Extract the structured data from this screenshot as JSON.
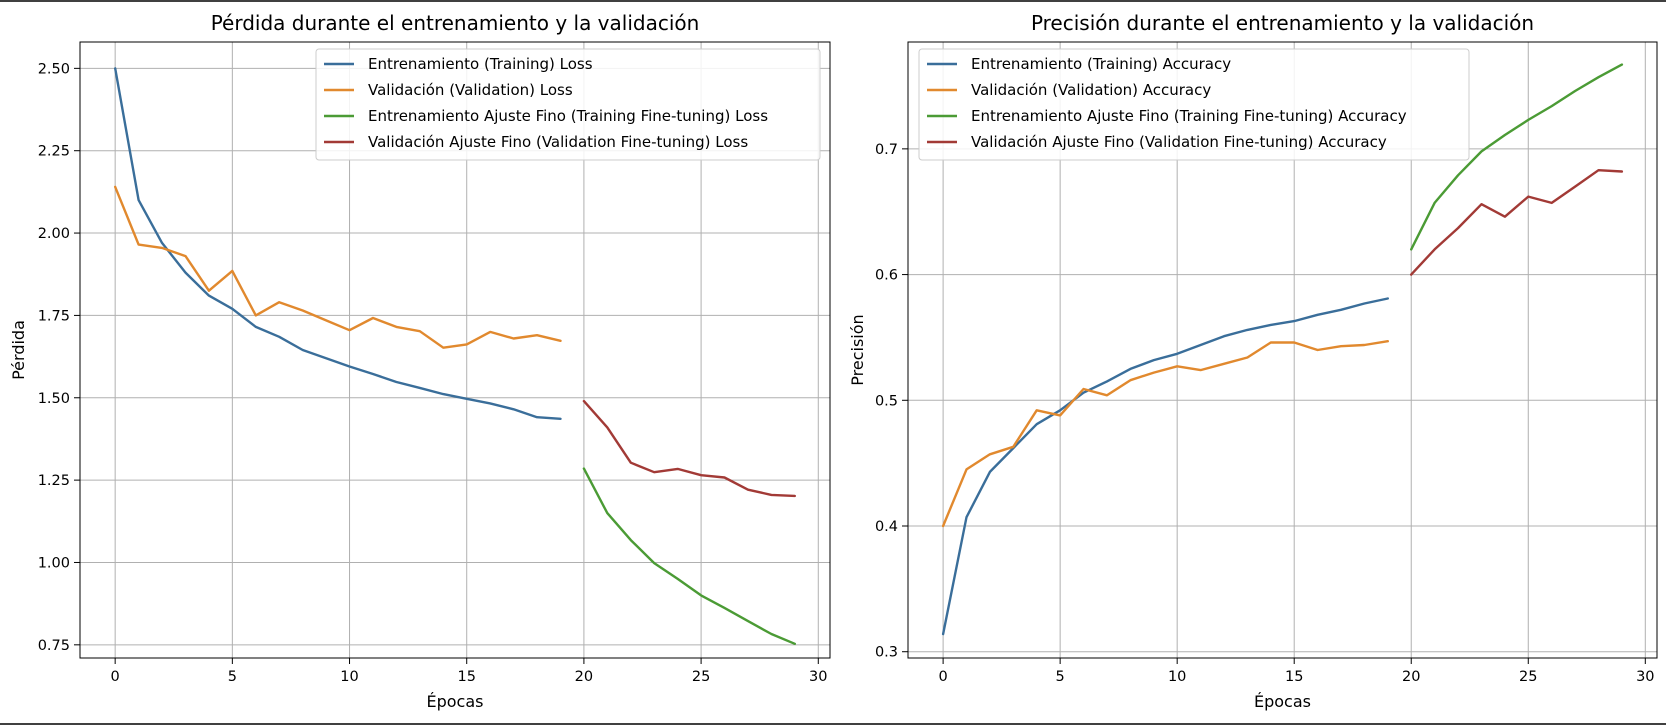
{
  "colors": {
    "training": "#3a6e9a",
    "validation": "#e1892e",
    "training_ft": "#4b9b35",
    "validation_ft": "#a23a36",
    "grid": "#b0b0b0"
  },
  "chart_data": [
    {
      "type": "line",
      "title": "Pérdida durante el entrenamiento y la validación",
      "xlabel": "Épocas",
      "ylabel": "Pérdida",
      "xlim": [
        -1.5,
        30.5
      ],
      "ylim": [
        0.71,
        2.58
      ],
      "xticks": [
        0,
        5,
        10,
        15,
        20,
        25,
        30
      ],
      "yticks": [
        0.75,
        1.0,
        1.25,
        1.5,
        1.75,
        2.0,
        2.25,
        2.5
      ],
      "ytick_labels": [
        "0.75",
        "1.00",
        "1.25",
        "1.50",
        "1.75",
        "2.00",
        "2.25",
        "2.50"
      ],
      "grid": true,
      "legend_position": "top-right",
      "series": [
        {
          "name": "Entrenamiento (Training) Loss",
          "color_key": "training",
          "x": [
            0,
            1,
            2,
            3,
            4,
            5,
            6,
            7,
            8,
            9,
            10,
            11,
            12,
            13,
            14,
            15,
            16,
            17,
            18,
            19
          ],
          "values": [
            2.5,
            2.1,
            1.97,
            1.88,
            1.81,
            1.77,
            1.715,
            1.685,
            1.645,
            1.62,
            1.595,
            1.572,
            1.548,
            1.53,
            1.511,
            1.497,
            1.483,
            1.465,
            1.441,
            1.436
          ]
        },
        {
          "name": "Validación (Validation) Loss",
          "color_key": "validation",
          "x": [
            0,
            1,
            2,
            3,
            4,
            5,
            6,
            7,
            8,
            9,
            10,
            11,
            12,
            13,
            14,
            15,
            16,
            17,
            18,
            19
          ],
          "values": [
            2.14,
            1.965,
            1.955,
            1.93,
            1.825,
            1.885,
            1.75,
            1.79,
            1.765,
            1.735,
            1.705,
            1.742,
            1.715,
            1.702,
            1.652,
            1.662,
            1.7,
            1.68,
            1.69,
            1.673
          ]
        },
        {
          "name": "Entrenamiento Ajuste Fino (Training Fine-tuning) Loss",
          "color_key": "training_ft",
          "x": [
            20,
            21,
            22,
            23,
            24,
            25,
            26,
            27,
            28,
            29
          ],
          "values": [
            1.285,
            1.15,
            1.068,
            0.998,
            0.95,
            0.9,
            0.862,
            0.822,
            0.783,
            0.753
          ]
        },
        {
          "name": "Validación Ajuste Fino (Validation Fine-tuning) Loss",
          "color_key": "validation_ft",
          "x": [
            20,
            21,
            22,
            23,
            24,
            25,
            26,
            27,
            28,
            29
          ],
          "values": [
            1.49,
            1.41,
            1.303,
            1.274,
            1.284,
            1.265,
            1.258,
            1.221,
            1.205,
            1.202
          ]
        }
      ]
    },
    {
      "type": "line",
      "title": "Precisión durante el entrenamiento y la validación",
      "xlabel": "Épocas",
      "ylabel": "Precisión",
      "xlim": [
        -1.5,
        30.5
      ],
      "ylim": [
        0.295,
        0.785
      ],
      "xticks": [
        0,
        5,
        10,
        15,
        20,
        25,
        30
      ],
      "yticks": [
        0.3,
        0.4,
        0.5,
        0.6,
        0.7
      ],
      "ytick_labels": [
        "0.3",
        "0.4",
        "0.5",
        "0.6",
        "0.7"
      ],
      "grid": true,
      "legend_position": "top-left",
      "series": [
        {
          "name": "Entrenamiento (Training) Accuracy",
          "color_key": "training",
          "x": [
            0,
            1,
            2,
            3,
            4,
            5,
            6,
            7,
            8,
            9,
            10,
            11,
            12,
            13,
            14,
            15,
            16,
            17,
            18,
            19
          ],
          "values": [
            0.314,
            0.407,
            0.443,
            0.462,
            0.481,
            0.492,
            0.506,
            0.515,
            0.525,
            0.532,
            0.537,
            0.544,
            0.551,
            0.556,
            0.56,
            0.563,
            0.568,
            0.572,
            0.577,
            0.581
          ]
        },
        {
          "name": "Validación (Validation) Accuracy",
          "color_key": "validation",
          "x": [
            0,
            1,
            2,
            3,
            4,
            5,
            6,
            7,
            8,
            9,
            10,
            11,
            12,
            13,
            14,
            15,
            16,
            17,
            18,
            19
          ],
          "values": [
            0.4,
            0.445,
            0.457,
            0.463,
            0.492,
            0.488,
            0.509,
            0.504,
            0.516,
            0.522,
            0.527,
            0.524,
            0.529,
            0.534,
            0.546,
            0.546,
            0.54,
            0.543,
            0.544,
            0.547
          ]
        },
        {
          "name": "Entrenamiento Ajuste Fino (Training Fine-tuning) Accuracy",
          "color_key": "training_ft",
          "x": [
            20,
            21,
            22,
            23,
            24,
            25,
            26,
            27,
            28,
            29
          ],
          "values": [
            0.62,
            0.657,
            0.679,
            0.698,
            0.711,
            0.723,
            0.734,
            0.746,
            0.757,
            0.767
          ]
        },
        {
          "name": "Validación Ajuste Fino (Validation Fine-tuning) Accuracy",
          "color_key": "validation_ft",
          "x": [
            20,
            21,
            22,
            23,
            24,
            25,
            26,
            27,
            28,
            29
          ],
          "values": [
            0.6,
            0.62,
            0.637,
            0.656,
            0.646,
            0.662,
            0.657,
            0.67,
            0.683,
            0.682
          ]
        }
      ]
    }
  ]
}
